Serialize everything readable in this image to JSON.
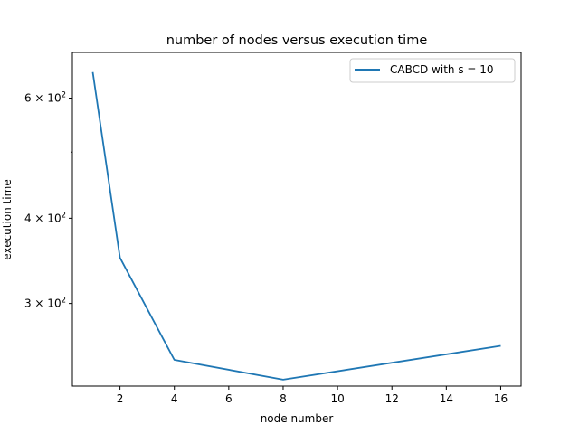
{
  "chart_data": {
    "type": "line",
    "title": "number of nodes versus execution time",
    "xlabel": "node number",
    "ylabel": "execution time",
    "yscale": "log",
    "xlim": [
      0.25,
      16.75
    ],
    "ylim": [
      227,
      700
    ],
    "x_ticks": [
      2,
      4,
      6,
      8,
      10,
      12,
      14,
      16
    ],
    "y_ticks": [
      {
        "value": 600,
        "mantissa": "6",
        "base": "10",
        "exp": "2"
      },
      {
        "value": 400,
        "mantissa": "4",
        "base": "10",
        "exp": "2"
      },
      {
        "value": 300,
        "mantissa": "3",
        "base": "10",
        "exp": "2"
      }
    ],
    "y_minor_ticks": [
      500
    ],
    "x": [
      1,
      2,
      4,
      8,
      16
    ],
    "series": [
      {
        "name": "CABCD with s = 10",
        "values": [
          655,
          350,
          248,
          232,
          260
        ],
        "color": "#1f77b4"
      }
    ],
    "legend": "top-right",
    "grid": false
  }
}
